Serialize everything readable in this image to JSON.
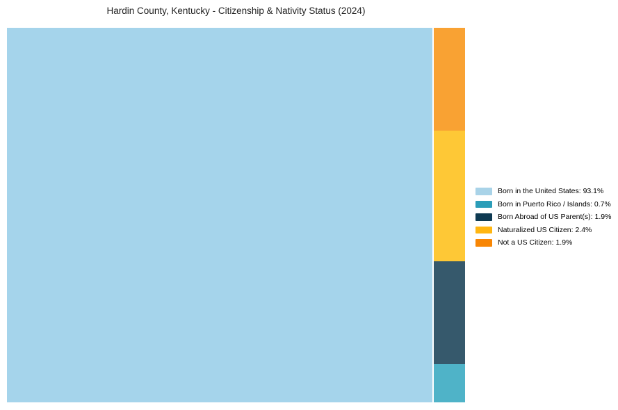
{
  "chart_data": {
    "type": "treemap",
    "title": "Hardin County, Kentucky - Citizenship & Nativity Status (2024)",
    "unit": "percent",
    "legend_position": "right-center",
    "grid": false,
    "categories": [
      "Born in the United States",
      "Born in Puerto Rico / Islands",
      "Born Abroad of US Parent(s)",
      "Naturalized US Citizen",
      "Not a US Citizen"
    ],
    "values": [
      93.1,
      0.7,
      1.9,
      2.4,
      1.9
    ],
    "items": [
      {
        "name": "born-in-the-united-states",
        "category": "Born in the United States",
        "value": 93.1,
        "legend_label": "Born in the United States: 93.1%",
        "fill": "#A5D4EB",
        "legend_color": "#A9D3E8"
      },
      {
        "name": "born-in-puerto-rico-islands",
        "category": "Born in Puerto Rico / Islands",
        "value": 0.7,
        "legend_label": "Born in Puerto Rico / Islands: 0.7%",
        "fill": "#4FB3C8",
        "legend_color": "#2B9DB8"
      },
      {
        "name": "born-abroad-of-us-parents",
        "category": "Born Abroad of US Parent(s)",
        "value": 1.9,
        "legend_label": "Born Abroad of US Parent(s): 1.9%",
        "fill": "#36596C",
        "legend_color": "#0E3A52"
      },
      {
        "name": "naturalized-us-citizen",
        "category": "Naturalized US Citizen",
        "value": 2.4,
        "legend_label": "Naturalized US Citizen: 2.4%",
        "fill": "#FEC836",
        "legend_color": "#FFB612"
      },
      {
        "name": "not-a-us-citizen",
        "category": "Not a US Citizen",
        "value": 1.9,
        "legend_label": "Not a US Citizen: 1.9%",
        "fill": "#F9A233",
        "legend_color": "#F88604"
      }
    ],
    "layout": {
      "big_tile": "Born in the United States",
      "column_top_to_bottom": [
        "Not a US Citizen",
        "Naturalized US Citizen",
        "Born Abroad of US Parent(s)",
        "Born in Puerto Rico / Islands"
      ]
    }
  }
}
